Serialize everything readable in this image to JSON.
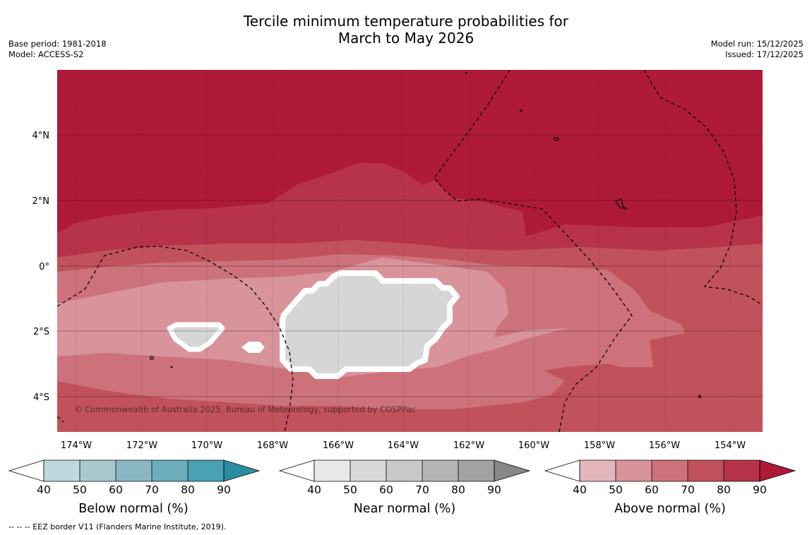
{
  "title": {
    "line1": "Tercile minimum temperature probabilities for",
    "line2": "March to May 2026"
  },
  "meta_left": {
    "base_period": "Base period: 1981-2018",
    "model": "Model: ACCESS-S2"
  },
  "meta_right": {
    "model_run": "Model run: 15/12/2025",
    "issued": "Issued: 17/12/2025"
  },
  "map": {
    "lat_labels": [
      "4°N",
      "2°N",
      "0°",
      "2°S",
      "4°S"
    ],
    "lon_labels": [
      "174°W",
      "172°W",
      "170°W",
      "168°W",
      "166°W",
      "164°W",
      "162°W",
      "160°W",
      "158°W",
      "156°W",
      "154°W"
    ],
    "copyright": "© Commonwealth of Australia 2025, Bureau of Meteorology, supported by COSPPac"
  },
  "colorbars": {
    "below": {
      "title": "Below normal (%)",
      "ticks": [
        "40",
        "50",
        "60",
        "70",
        "80",
        "90"
      ],
      "colors": [
        "#bfd7de",
        "#a8c8cf",
        "#8bb7c3",
        "#6caebb",
        "#4aa1b2",
        "#2a8ea3"
      ]
    },
    "near": {
      "title": "Near normal (%)",
      "ticks": [
        "40",
        "50",
        "60",
        "70",
        "80",
        "90"
      ],
      "colors": [
        "#e8e8e8",
        "#d8d8d8",
        "#c8c8c8",
        "#b5b5b5",
        "#a2a2a2",
        "#888888"
      ]
    },
    "above": {
      "title": "Above normal (%)",
      "ticks": [
        "40",
        "50",
        "60",
        "70",
        "80",
        "90"
      ],
      "colors": [
        "#e3b6bc",
        "#d8939b",
        "#cd727b",
        "#c1525c",
        "#b7334a",
        "#ae1a38"
      ]
    }
  },
  "footnote": "--  --  -- EEZ border V11 (Flanders Marine Institute, 2019)."
}
